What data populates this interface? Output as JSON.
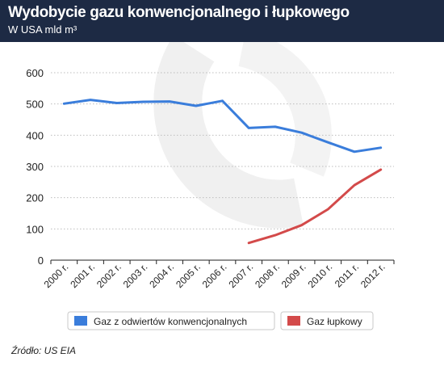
{
  "header": {
    "title": "Wydobycie gazu konwencjonalnego i łupkowego",
    "subtitle": "W USA mld m³"
  },
  "source": "Źródło: US EIA",
  "colors": {
    "header_bg": "#1d2a44",
    "series_conventional": "#3a7ddb",
    "series_shale": "#d34a4a"
  },
  "chart_data": {
    "type": "line",
    "categories": [
      "2000 r.",
      "2001 r.",
      "2002 r.",
      "2003 r.",
      "2004 r.",
      "2005 r.",
      "2006 r.",
      "2007 r.",
      "2008 r.",
      "2009 r.",
      "2010 r.",
      "2011 r.",
      "2012 r."
    ],
    "series": [
      {
        "name": "Gaz z odwiertów konwencjonalnych",
        "color": "#3a7ddb",
        "values": [
          501,
          513,
          503,
          507,
          508,
          494,
          510,
          423,
          427,
          408,
          377,
          347,
          360
        ]
      },
      {
        "name": "Gaz łupkowy",
        "color": "#d34a4a",
        "values": [
          null,
          null,
          null,
          null,
          null,
          null,
          null,
          55,
          80,
          112,
          163,
          240,
          290
        ]
      }
    ],
    "yticks": [
      0,
      100,
      200,
      300,
      400,
      500,
      600
    ],
    "ylim": [
      0,
      600
    ],
    "grid": "horizontal-dotted",
    "legend": "bottom"
  }
}
